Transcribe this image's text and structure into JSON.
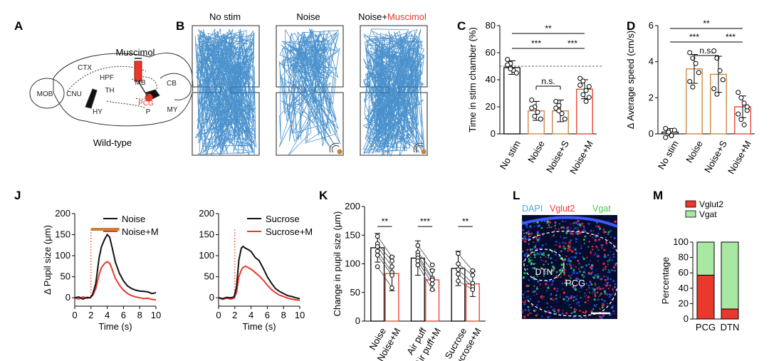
{
  "panel_letters": {
    "A": "A",
    "B": "B",
    "C": "C",
    "D": "D",
    "J": "J",
    "K": "K",
    "L": "L",
    "M": "M"
  },
  "brain": {
    "drug": "Muscimol",
    "genotype": "Wild-type",
    "regions": [
      "MOB",
      "CNU",
      "CTX",
      "HPF",
      "TH",
      "HY",
      "MB",
      "CB",
      "P",
      "MY"
    ],
    "target": "PCG"
  },
  "tracks": {
    "titles": [
      "No stim",
      "Noise",
      "Noise+"
    ],
    "titles_red": "Muscimol"
  },
  "colors": {
    "orange": "#c8803a",
    "red": "#e8392c",
    "blue": "#2c7fc4",
    "black": "#111111",
    "green": "#a9e8a3",
    "pink": "#ff3030"
  },
  "chart_data": [
    {
      "panel": "C",
      "type": "bar",
      "categories": [
        "No stim",
        "Noise",
        "Noise+S",
        "Noise+M"
      ],
      "values": [
        49,
        17,
        17,
        33
      ],
      "errors": [
        5,
        7,
        8,
        7
      ],
      "points": [
        [
          55,
          52,
          47,
          45,
          51,
          48
        ],
        [
          25,
          20,
          16,
          11,
          19,
          13
        ],
        [
          24,
          21,
          15,
          11,
          19,
          17
        ],
        [
          41,
          39,
          32,
          27,
          36,
          29,
          24,
          35
        ]
      ],
      "ylabel": "Time in stim chamber (%)",
      "ylim": [
        0,
        80
      ],
      "yticks": [
        0,
        20,
        40,
        60,
        80
      ],
      "reference_line": 50,
      "significance": [
        {
          "between": [
            "No stim",
            "Noise+M"
          ],
          "label": "**"
        },
        {
          "between": [
            "No stim",
            "Noise+S"
          ],
          "label": "***"
        },
        {
          "between": [
            "Noise+S",
            "Noise+M"
          ],
          "label": "***"
        },
        {
          "between": [
            "Noise",
            "Noise+S"
          ],
          "label": "n.s."
        }
      ]
    },
    {
      "panel": "D",
      "type": "bar",
      "categories": [
        "No stim",
        "Noise",
        "Noise+S",
        "Noise+M"
      ],
      "values": [
        0.1,
        3.6,
        3.3,
        1.5
      ],
      "errors": [
        0.2,
        0.8,
        1.0,
        0.6
      ],
      "points": [
        [
          0.3,
          0.1,
          -0.1,
          0.2,
          -0.2,
          0.1,
          -0.1
        ],
        [
          4.5,
          4.2,
          3.9,
          3.4,
          2.9,
          2.6
        ],
        [
          4.6,
          4.2,
          3.5,
          3.0,
          2.5,
          2.2
        ],
        [
          2.3,
          2.0,
          1.7,
          1.3,
          1.1,
          0.8,
          0.5,
          1.5
        ]
      ],
      "ylabel": "Δ Average speed (cm/s)",
      "ylim": [
        0,
        6
      ],
      "yticks": [
        0,
        2,
        4,
        6
      ],
      "significance": [
        {
          "between": [
            "No stim",
            "Noise+M"
          ],
          "label": "**"
        },
        {
          "between": [
            "No stim",
            "Noise+S"
          ],
          "label": "***"
        },
        {
          "between": [
            "Noise+S",
            "Noise+M"
          ],
          "label": "***"
        },
        {
          "between": [
            "Noise",
            "Noise+S"
          ],
          "label": "n.s."
        }
      ]
    },
    {
      "panel": "J1",
      "type": "line",
      "xlabel": "Time (s)",
      "ylabel": "Δ Pupil size (μm)",
      "xlim": [
        0,
        10
      ],
      "ylim": [
        -20,
        200
      ],
      "xticks": [
        0,
        2,
        4,
        6,
        8,
        10
      ],
      "yticks": [
        0,
        50,
        100,
        150,
        200
      ],
      "stim_line_x": 2,
      "stim_bar": [
        2,
        5.5
      ],
      "series": [
        {
          "name": "Noise",
          "x": [
            0,
            0.5,
            1,
            1.5,
            1.9,
            2.2,
            2.6,
            3,
            3.3,
            3.7,
            4,
            4.3,
            4.6,
            5,
            5.5,
            6,
            6.5,
            7,
            7.5,
            8,
            8.5,
            9,
            9.5,
            10
          ],
          "y": [
            0,
            2,
            -3,
            1,
            0,
            8,
            35,
            95,
            122,
            140,
            150,
            144,
            120,
            85,
            58,
            40,
            28,
            22,
            18,
            16,
            15,
            14,
            10,
            12
          ]
        },
        {
          "name": "Noise+M",
          "x": [
            0,
            0.5,
            1,
            1.5,
            1.9,
            2.2,
            2.6,
            3,
            3.3,
            3.7,
            4,
            4.3,
            4.6,
            5,
            5.5,
            6,
            6.5,
            7,
            7.5,
            8,
            8.5,
            9,
            9.5,
            10
          ],
          "y": [
            0,
            -3,
            2,
            -1,
            0,
            5,
            22,
            55,
            72,
            82,
            86,
            82,
            68,
            46,
            30,
            18,
            10,
            5,
            2,
            0,
            -2,
            -1,
            -4,
            -5
          ]
        }
      ]
    },
    {
      "panel": "J2",
      "type": "line",
      "xlabel": "Time (s)",
      "xlim": [
        0,
        10
      ],
      "ylim": [
        -20,
        200
      ],
      "xticks": [
        0,
        2,
        4,
        6,
        8,
        10
      ],
      "yticks": [
        0,
        50,
        100,
        150,
        200
      ],
      "stim_line_x": 2,
      "series": [
        {
          "name": "Sucrose",
          "x": [
            0,
            0.5,
            1,
            1.5,
            1.9,
            2.2,
            2.5,
            2.8,
            3,
            3.3,
            3.6,
            4,
            4.5,
            5,
            5.5,
            6,
            6.5,
            7,
            7.5,
            8,
            8.5,
            9,
            9.5,
            10
          ],
          "y": [
            0,
            -2,
            1,
            0,
            2,
            25,
            90,
            118,
            122,
            118,
            115,
            110,
            96,
            88,
            70,
            50,
            35,
            22,
            15,
            10,
            5,
            3,
            0,
            -2
          ]
        },
        {
          "name": "Sucrose+M",
          "x": [
            0,
            0.5,
            1,
            1.5,
            1.9,
            2.2,
            2.5,
            2.8,
            3,
            3.3,
            3.6,
            4,
            4.5,
            5,
            5.5,
            6,
            6.5,
            7,
            7.5,
            8,
            8.5,
            9,
            9.5,
            10
          ],
          "y": [
            0,
            -4,
            -1,
            -3,
            -1,
            12,
            50,
            66,
            72,
            75,
            72,
            68,
            60,
            52,
            42,
            30,
            20,
            12,
            6,
            3,
            -1,
            -3,
            -5,
            -6
          ]
        }
      ]
    },
    {
      "panel": "K",
      "type": "bar",
      "categories": [
        "Noise",
        "Noise+M",
        "Air puff",
        "Air puff+M",
        "Sucrose",
        "Sucrose+M"
      ],
      "values": [
        128,
        83,
        110,
        72,
        92,
        65
      ],
      "errors": [
        25,
        30,
        30,
        18,
        30,
        22
      ],
      "pairs": [
        [
          [
            148,
            135,
            130,
            122,
            115,
            95
          ],
          [
            112,
            105,
            95,
            85,
            80,
            58
          ]
        ],
        [
          [
            132,
            120,
            115,
            110,
            105,
            98
          ],
          [
            98,
            88,
            75,
            72,
            65,
            55
          ]
        ],
        [
          [
            118,
            100,
            90,
            82,
            70
          ],
          [
            88,
            80,
            66,
            60,
            55
          ]
        ]
      ],
      "ylabel": "Change in pupil size (μm)",
      "ylim": [
        0,
        200
      ],
      "yticks": [
        0,
        50,
        100,
        150,
        200
      ],
      "significance": [
        {
          "between": [
            "Noise",
            "Noise+M"
          ],
          "label": "**"
        },
        {
          "between": [
            "Air puff",
            "Air puff+M"
          ],
          "label": "***"
        },
        {
          "between": [
            "Sucrose",
            "Sucrose+M"
          ],
          "label": "**"
        }
      ]
    },
    {
      "panel": "M",
      "type": "bar",
      "categories": [
        "PCG",
        "DTN"
      ],
      "series": [
        {
          "name": "Vglut2",
          "values": [
            57,
            13
          ]
        },
        {
          "name": "Vgat",
          "values": [
            43,
            87
          ]
        }
      ],
      "ylabel": "Percentage",
      "ylim": [
        0,
        100
      ],
      "yticks": [
        0,
        20,
        40,
        60,
        80,
        100
      ],
      "legend": "top-left"
    }
  ],
  "micrograph": {
    "labels": [
      "DAPI",
      "Vglut2",
      "Vgat"
    ],
    "regions": [
      "DTN",
      "PCG"
    ]
  }
}
